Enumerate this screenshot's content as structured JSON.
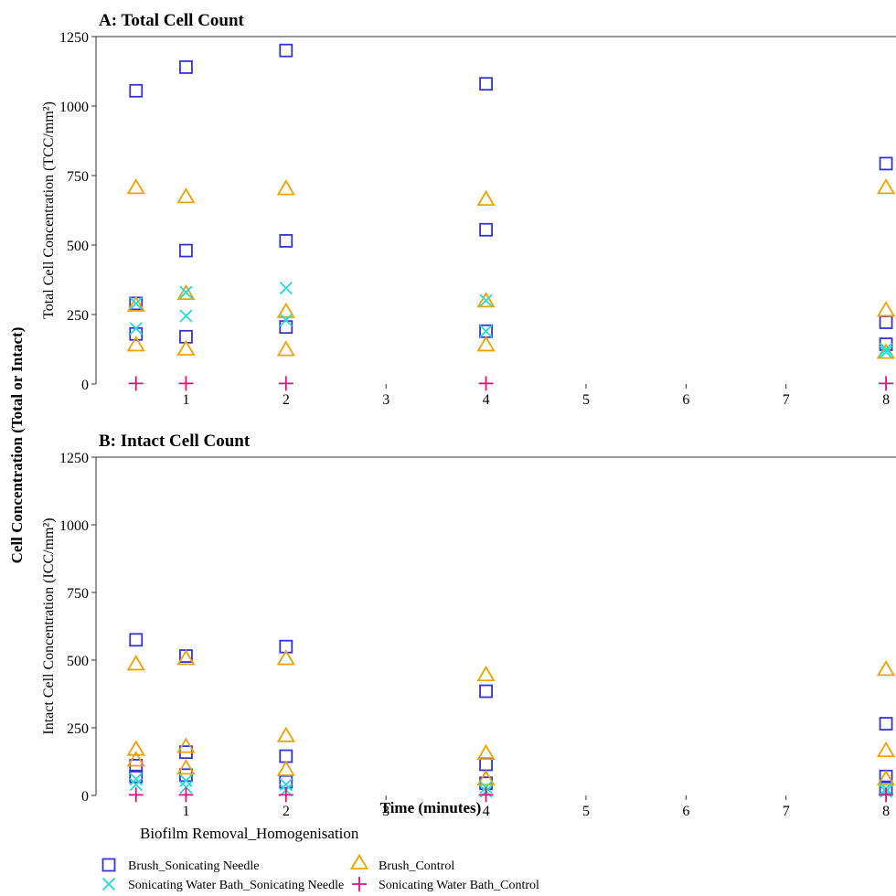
{
  "shared": {
    "ylabel": "Cell Concentration (Total or Intact)",
    "xlabel": "Time (minutes)",
    "legend_title": "Biofilm Removal_Homogenisation",
    "legend": [
      {
        "label": "Brush_Sonicating Needle",
        "marker": "square",
        "color": "#3333dd"
      },
      {
        "label": "Brush_Control",
        "marker": "triangle",
        "color": "#f2a100"
      },
      {
        "label": "Sonicating Water Bath_Sonicating Needle",
        "marker": "x",
        "color": "#22dddd"
      },
      {
        "label": "Sonicating Water Bath_Control",
        "marker": "plus",
        "color": "#e0117f"
      }
    ]
  },
  "chart_data": [
    {
      "type": "scatter",
      "title": "A: Total Cell Count",
      "ylabel": "Total Cell Concentration (TCC/mm²)",
      "xlim": [
        0.1,
        8.1
      ],
      "ylim": [
        0,
        1250
      ],
      "xticks": [
        1,
        2,
        3,
        4,
        5,
        6,
        7,
        8
      ],
      "yticks": [
        0,
        250,
        500,
        750,
        1000,
        1250
      ],
      "series": [
        {
          "name": "Brush_Sonicating Needle",
          "x": [
            0.5,
            0.5,
            0.5,
            1,
            1,
            1,
            2,
            2,
            2,
            4,
            4,
            4,
            8,
            8,
            8
          ],
          "y": [
            1055,
            290,
            180,
            1140,
            480,
            170,
            1200,
            515,
            205,
            1080,
            555,
            190,
            793,
            222,
            143
          ]
        },
        {
          "name": "Brush_Control",
          "x": [
            0.5,
            0.5,
            0.5,
            1,
            1,
            1,
            2,
            2,
            2,
            4,
            4,
            4,
            8,
            8,
            8
          ],
          "y": [
            706,
            283,
            140,
            673,
            325,
            125,
            702,
            260,
            123,
            664,
            298,
            140,
            706,
            265,
            113
          ]
        },
        {
          "name": "Sonicating Water Bath_Sonicating Needle",
          "x": [
            0.5,
            0.5,
            1,
            1,
            2,
            2,
            4,
            4,
            8,
            8
          ],
          "y": [
            290,
            200,
            330,
            245,
            345,
            230,
            300,
            190,
            125,
            115
          ]
        },
        {
          "name": "Sonicating Water Bath_Control",
          "x": [
            0.5,
            1,
            2,
            4,
            8
          ],
          "y": [
            2,
            2,
            2,
            2,
            2
          ]
        }
      ]
    },
    {
      "type": "scatter",
      "title": "B: Intact Cell Count",
      "ylabel": "Intact Cell Concentration (ICC/mm²)",
      "xlim": [
        0.1,
        8.1
      ],
      "ylim": [
        0,
        1250
      ],
      "xticks": [
        1,
        2,
        3,
        4,
        5,
        6,
        7,
        8
      ],
      "yticks": [
        0,
        250,
        500,
        750,
        1000,
        1250
      ],
      "series": [
        {
          "name": "Brush_Sonicating Needle",
          "x": [
            0.5,
            0.5,
            0.5,
            1,
            1,
            1,
            2,
            2,
            2,
            4,
            4,
            4,
            8,
            8,
            8
          ],
          "y": [
            575,
            110,
            70,
            515,
            160,
            75,
            550,
            145,
            50,
            385,
            115,
            45,
            265,
            70,
            30
          ]
        },
        {
          "name": "Brush_Control",
          "x": [
            0.5,
            0.5,
            0.5,
            1,
            1,
            1,
            2,
            2,
            2,
            4,
            4,
            4,
            8,
            8,
            8
          ],
          "y": [
            485,
            170,
            130,
            505,
            180,
            100,
            505,
            220,
            95,
            445,
            155,
            60,
            465,
            165,
            60
          ]
        },
        {
          "name": "Sonicating Water Bath_Sonicating Needle",
          "x": [
            0.5,
            0.5,
            1,
            1,
            2,
            2,
            4,
            4,
            8,
            8
          ],
          "y": [
            60,
            40,
            55,
            30,
            40,
            20,
            30,
            15,
            25,
            15
          ]
        },
        {
          "name": "Sonicating Water Bath_Control",
          "x": [
            0.5,
            1,
            2,
            4,
            8
          ],
          "y": [
            2,
            2,
            2,
            2,
            2
          ]
        }
      ]
    }
  ]
}
